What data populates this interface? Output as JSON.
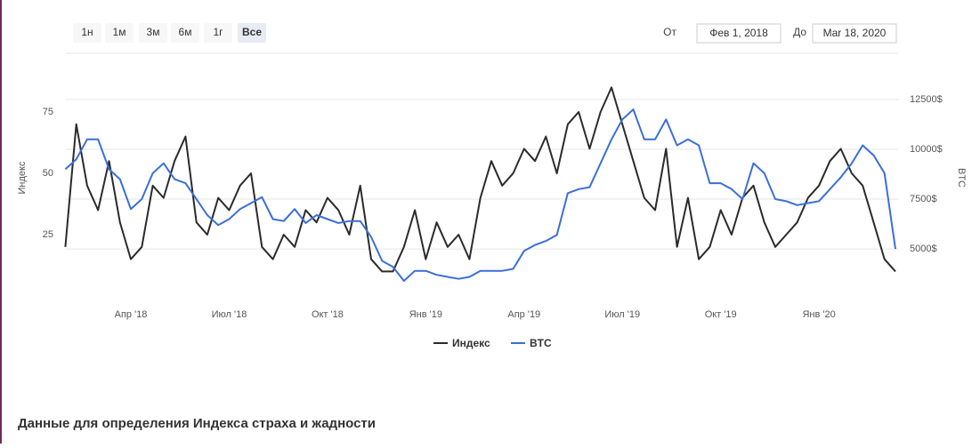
{
  "range_selector": {
    "buttons": [
      "1н",
      "1м",
      "3м",
      "6м",
      "1г",
      "Все"
    ],
    "selected": 5,
    "from_label": "От",
    "from": "Фев 1, 2018",
    "to_label": "До",
    "to": "Mar 18, 2020"
  },
  "section_heading": "Данные для определения Индекса страха и жадности",
  "chart_data": {
    "type": "line",
    "y_label": "Индекс",
    "y2_label": "BTC",
    "categories": [
      null,
      null,
      null,
      null,
      null,
      null,
      "Апр '18",
      null,
      null,
      null,
      null,
      null,
      null,
      null,
      null,
      "Июл '18",
      null,
      null,
      null,
      null,
      null,
      null,
      null,
      null,
      "Окт '18",
      null,
      null,
      null,
      null,
      null,
      null,
      null,
      null,
      "Янв '19",
      null,
      null,
      null,
      null,
      null,
      null,
      null,
      null,
      "Апр '19",
      null,
      null,
      null,
      null,
      null,
      null,
      null,
      null,
      "Июл '19",
      null,
      null,
      null,
      null,
      null,
      null,
      null,
      null,
      "Окт '19",
      null,
      null,
      null,
      null,
      null,
      null,
      null,
      null,
      "Янв '20",
      null,
      null,
      null,
      null,
      null,
      null,
      null
    ],
    "ylim": [
      0,
      100
    ],
    "yticks": [
      25,
      50,
      75
    ],
    "y2lim": [
      2640,
      14950
    ],
    "y2ticks": [
      {
        "value": 5000,
        "label": "5000$"
      },
      {
        "value": 7500,
        "label": "7500$"
      },
      {
        "value": 10000,
        "label": "10000$"
      },
      {
        "value": 12500,
        "label": "12500$"
      }
    ],
    "grid": true,
    "legend": "bottom",
    "series": [
      {
        "name": "Индекс",
        "color": "#2b2b2b",
        "values": [
          20,
          70,
          45,
          35,
          55,
          30,
          15,
          20,
          45,
          40,
          55,
          65,
          30,
          25,
          40,
          35,
          45,
          50,
          20,
          15,
          25,
          20,
          35,
          30,
          40,
          35,
          25,
          45,
          15,
          10,
          10,
          20,
          35,
          15,
          30,
          20,
          25,
          15,
          40,
          55,
          45,
          50,
          60,
          55,
          65,
          50,
          70,
          75,
          60,
          75,
          85,
          70,
          55,
          40,
          35,
          60,
          20,
          40,
          15,
          20,
          35,
          25,
          40,
          45,
          30,
          20,
          25,
          30,
          40,
          45,
          55,
          60,
          50,
          45,
          30,
          15,
          10
        ]
      },
      {
        "name": "BTC",
        "color": "#3a6fd8",
        "axis": "y2",
        "values": [
          9000,
          9500,
          10500,
          10500,
          9000,
          8500,
          7000,
          7500,
          8800,
          9300,
          8500,
          8300,
          7500,
          6700,
          6200,
          6500,
          7000,
          7300,
          7600,
          6500,
          6400,
          7000,
          6300,
          6700,
          6500,
          6300,
          6400,
          6400,
          5600,
          4400,
          4100,
          3400,
          3900,
          3900,
          3700,
          3600,
          3500,
          3600,
          3900,
          3900,
          3900,
          4000,
          4900,
          5200,
          5400,
          5700,
          7800,
          8000,
          8100,
          9300,
          10500,
          11500,
          12000,
          10500,
          10500,
          11500,
          10200,
          10500,
          10200,
          8300,
          8300,
          8000,
          7500,
          9300,
          8800,
          7500,
          7400,
          7200,
          7300,
          7400,
          8000,
          8600,
          9300,
          10200,
          9700,
          8800,
          5000
        ]
      }
    ]
  }
}
